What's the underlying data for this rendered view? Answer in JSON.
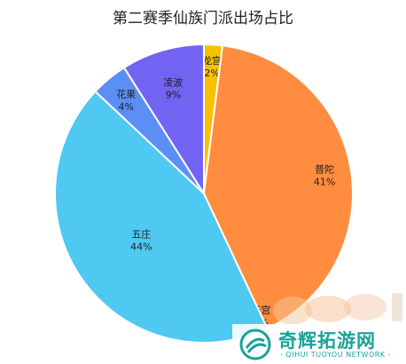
{
  "chart_data": {
    "type": "pie",
    "title": "第二赛季仙族门派出场占比",
    "slices": [
      {
        "label": "龙宫",
        "percent_label": "2%",
        "value": 2,
        "color": "#f7c100"
      },
      {
        "label": "普陀",
        "percent_label": "41%",
        "value": 41,
        "color": "#ff8c3f"
      },
      {
        "label": "天宫",
        "percent_label": "0%",
        "value": 0,
        "color": "#9a9a9a"
      },
      {
        "label": "五庄",
        "percent_label": "44%",
        "value": 44,
        "color": "#4fc8f2"
      },
      {
        "label": "花果",
        "percent_label": "4%",
        "value": 4,
        "color": "#5b8ff5"
      },
      {
        "label": "凌波",
        "percent_label": "9%",
        "value": 9,
        "color": "#7263f2"
      }
    ]
  },
  "watermark": {
    "name": "奇辉拓游网",
    "subtitle": "- QIHUI TUOYOU NETWORK -"
  }
}
